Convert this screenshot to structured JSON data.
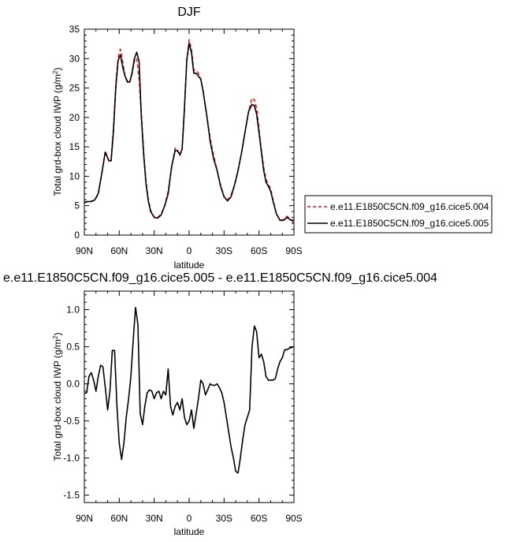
{
  "chart_data": [
    {
      "type": "line",
      "title": "DJF",
      "xlabel": "latitude",
      "ylabel": "Total grd-box cloud IWP (g/m",
      "ylabel_sup": "2",
      "ylabel_end": ")",
      "xlim": [
        90,
        -90
      ],
      "ylim": [
        0,
        35
      ],
      "xticks": [
        90,
        60,
        30,
        0,
        -30,
        -60,
        -90
      ],
      "xtick_labels": [
        "90N",
        "60N",
        "30N",
        "0",
        "30S",
        "60S",
        "90S"
      ],
      "yticks": [
        0,
        5,
        10,
        15,
        20,
        25,
        30,
        35
      ],
      "legend_position": "right",
      "x": [
        90,
        87,
        84,
        81,
        78,
        75,
        72,
        69,
        67,
        65,
        63,
        61,
        59,
        57,
        55,
        53,
        51,
        49,
        47,
        45,
        43,
        41,
        39,
        37,
        35,
        33,
        30,
        27,
        24,
        21,
        18,
        15,
        12,
        10,
        8,
        6,
        4,
        2,
        0,
        -2,
        -4,
        -6,
        -8,
        -10,
        -12,
        -15,
        -18,
        -21,
        -24,
        -27,
        -30,
        -33,
        -36,
        -39,
        -42,
        -45,
        -48,
        -51,
        -54,
        -56,
        -58,
        -60,
        -62,
        -64,
        -66,
        -68,
        -70,
        -72,
        -75,
        -78,
        -81,
        -84,
        -87,
        -90
      ],
      "series": [
        {
          "name": "e.e11.E1850C5CN.f09_g16.cice5.004",
          "color": "#e41a1c",
          "dash": "dashed",
          "values": [
            5.6,
            5.7,
            5.8,
            5.9,
            7.0,
            10.5,
            14.3,
            12.6,
            13.0,
            18.0,
            25.5,
            30.2,
            31.6,
            29.4,
            27.0,
            26.2,
            26.0,
            27.4,
            29.6,
            30.1,
            26.5,
            20.5,
            14.0,
            9.0,
            6.0,
            4.2,
            3.0,
            3.0,
            3.6,
            5.0,
            7.5,
            11.5,
            14.8,
            14.5,
            13.5,
            14.5,
            21.5,
            29.5,
            33.2,
            31.5,
            28.0,
            28.0,
            27.5,
            26.5,
            24.5,
            20.5,
            16.5,
            13.5,
            11.0,
            8.5,
            6.5,
            6.0,
            6.8,
            8.5,
            11.0,
            14.0,
            17.5,
            21.0,
            23.3,
            23.0,
            21.5,
            18.0,
            14.5,
            11.5,
            9.5,
            8.6,
            7.9,
            6.0,
            3.6,
            2.6,
            2.6,
            3.2,
            2.7,
            2.0
          ]
        },
        {
          "name": "e.e11.E1850C5CN.f09_g16.cice5.005",
          "color": "#000000",
          "dash": "solid",
          "values": [
            5.5,
            5.7,
            5.7,
            6.0,
            7.1,
            10.5,
            14.1,
            12.7,
            12.6,
            17.5,
            25.0,
            29.7,
            30.6,
            28.5,
            27.0,
            26.0,
            26.0,
            27.6,
            30.0,
            31.1,
            29.5,
            20.0,
            13.5,
            8.7,
            5.7,
            4.0,
            3.0,
            2.9,
            3.4,
            5.0,
            7.0,
            11.7,
            14.4,
            14.3,
            13.7,
            14.6,
            21.7,
            29.8,
            32.6,
            31.0,
            27.5,
            27.5,
            27.0,
            26.5,
            24.5,
            20.5,
            16.0,
            13.0,
            11.0,
            8.3,
            6.5,
            5.8,
            6.5,
            8.5,
            11.0,
            14.0,
            17.5,
            21.0,
            22.2,
            22.0,
            20.5,
            17.4,
            14.2,
            11.0,
            9.0,
            8.3,
            7.5,
            5.8,
            3.6,
            2.5,
            2.5,
            3.0,
            2.6,
            2.5
          ]
        }
      ]
    },
    {
      "type": "line",
      "title": "e.e11.E1850C5CN.f09_g16.cice5.005 - e.e11.E1850C5CN.f09_g16.cice5.004",
      "xlabel": "latitude",
      "ylabel": "Total grd-box cloud IWP (g/m",
      "ylabel_sup": "2",
      "ylabel_end": ")",
      "xlim": [
        90,
        -90
      ],
      "ylim": [
        -1.6,
        1.25
      ],
      "xticks": [
        90,
        60,
        30,
        0,
        -30,
        -60,
        -90
      ],
      "xtick_labels": [
        "90N",
        "60N",
        "30N",
        "0",
        "30S",
        "60S",
        "90S"
      ],
      "yticks": [
        -1.5,
        -1.0,
        -0.5,
        0.0,
        0.5,
        1.0
      ],
      "ytick_labels": [
        "-1.5",
        "-1.0",
        "-0.5",
        "0.0",
        "0.5",
        "1.0"
      ],
      "x": [
        90,
        88,
        86,
        84,
        82,
        80,
        78,
        76,
        74,
        72,
        70,
        68,
        66,
        64,
        62,
        60,
        58,
        56,
        54,
        52,
        50,
        48,
        46,
        44,
        42,
        40,
        38,
        36,
        34,
        32,
        30,
        28,
        26,
        24,
        22,
        20,
        18,
        16,
        14,
        12,
        10,
        8,
        6,
        4,
        2,
        0,
        -2,
        -4,
        -6,
        -8,
        -10,
        -12,
        -14,
        -16,
        -18,
        -20,
        -22,
        -24,
        -26,
        -28,
        -30,
        -32,
        -34,
        -36,
        -38,
        -40,
        -42,
        -44,
        -46,
        -48,
        -50,
        -52,
        -54,
        -56,
        -58,
        -60,
        -62,
        -64,
        -66,
        -68,
        -70,
        -72,
        -74,
        -76,
        -78,
        -80,
        -82,
        -84,
        -86,
        -88,
        -90
      ],
      "series": [
        {
          "name": "e.e11.E1850C5CN.f09_g16.cice5.005 - e.e11.E1850C5CN.f09_g16.cice5.004",
          "color": "#000000",
          "dash": "solid",
          "values": [
            -0.13,
            -0.12,
            0.1,
            0.15,
            0.05,
            -0.1,
            0.1,
            0.25,
            0.23,
            -0.05,
            -0.35,
            -0.1,
            0.45,
            0.45,
            -0.3,
            -0.8,
            -1.02,
            -0.8,
            -0.45,
            -0.2,
            0.1,
            0.6,
            1.03,
            0.8,
            -0.4,
            -0.55,
            -0.3,
            -0.12,
            -0.08,
            -0.1,
            -0.2,
            -0.12,
            -0.1,
            -0.2,
            -0.1,
            -0.15,
            0.2,
            -0.3,
            -0.42,
            -0.3,
            -0.25,
            -0.35,
            -0.2,
            -0.45,
            -0.55,
            -0.5,
            -0.35,
            -0.6,
            -0.4,
            -0.2,
            0.05,
            0.0,
            -0.15,
            -0.08,
            0.0,
            -0.02,
            -0.02,
            0.0,
            -0.05,
            -0.12,
            -0.25,
            -0.45,
            -0.65,
            -0.85,
            -1.0,
            -1.18,
            -1.2,
            -1.0,
            -0.75,
            -0.55,
            -0.45,
            -0.35,
            0.5,
            0.78,
            0.7,
            0.35,
            0.4,
            0.3,
            0.1,
            0.05,
            0.05,
            0.05,
            0.07,
            0.2,
            0.3,
            0.35,
            0.46,
            0.46,
            0.48,
            0.49,
            0.5
          ]
        }
      ]
    }
  ]
}
